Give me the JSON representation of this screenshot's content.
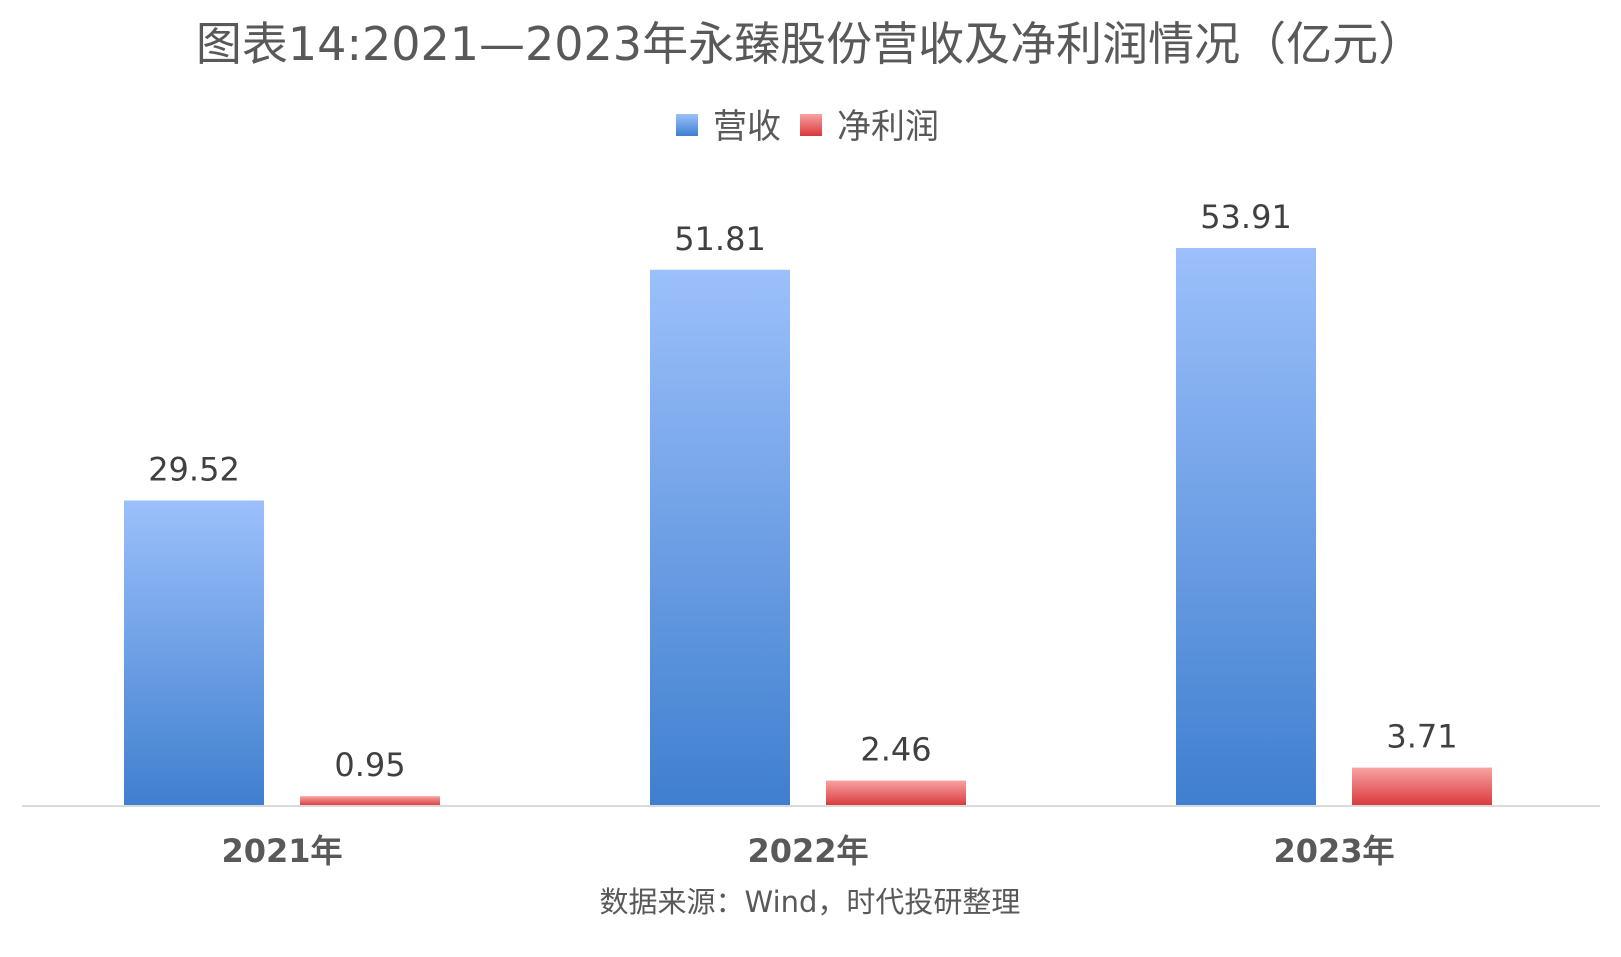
{
  "chart_data": {
    "type": "bar",
    "title": "图表14:2021—2023年永臻股份营收及净利润情况（亿元）",
    "source": "数据来源：Wind，时代投研整理",
    "categories": [
      "2021年",
      "2022年",
      "2023年"
    ],
    "series": [
      {
        "name": "营收",
        "values": [
          29.52,
          51.81,
          53.91
        ],
        "color_top": "#9cc0fb",
        "color_bottom": "#3f7fcf"
      },
      {
        "name": "净利润",
        "values": [
          0.95,
          2.46,
          3.71
        ],
        "color_top": "#f8a3a3",
        "color_bottom": "#d9383a"
      }
    ],
    "value_labels": [
      [
        "29.52",
        "51.81",
        "53.91"
      ],
      [
        "0.95",
        "2.46",
        "3.71"
      ]
    ],
    "ylim": [
      0,
      60
    ],
    "grid": false,
    "legend_position": "top-center",
    "axis_color": "#d9d9d9"
  }
}
